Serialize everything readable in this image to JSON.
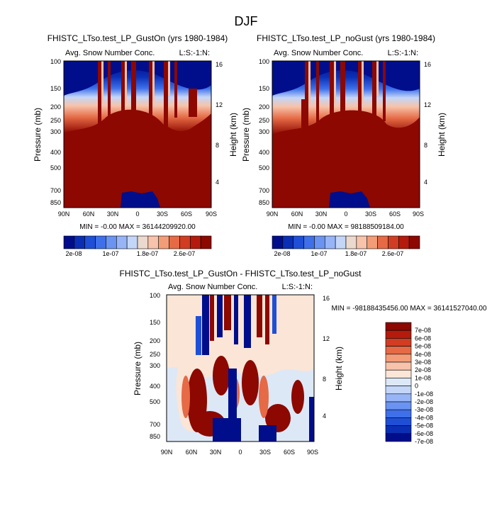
{
  "page_title": "DJF",
  "colors": {
    "full_scale": [
      "#000e8c",
      "#0a2fb5",
      "#1f4fd6",
      "#3f70ea",
      "#6a93f2",
      "#97b5f6",
      "#c4d6f8",
      "#ecd9ce",
      "#f7c3aa",
      "#f39c78",
      "#e56a45",
      "#d13d22",
      "#b51b0d",
      "#8c0800"
    ],
    "diff_scale": [
      "#000e8c",
      "#0a2fb5",
      "#1f4fd6",
      "#3f70ea",
      "#6a93f2",
      "#97b5f6",
      "#c4d6f8",
      "#dde8f6",
      "#fbe5d6",
      "#f7c3aa",
      "#f39c78",
      "#e56a45",
      "#d13d22",
      "#b51b0d",
      "#8c0800"
    ]
  },
  "chart_data": [
    {
      "type": "heatmap",
      "title": "FHISTC_LTso.test_LP_GustOn (yrs 1980-1984)",
      "subtitle_left": "Avg. Snow Number Conc.",
      "subtitle_right": "L:S:-1:N:",
      "ylabel": "Pressure (mb)",
      "ylabel_right": "Height (km)",
      "x_ticks": [
        "90N",
        "60N",
        "30N",
        "0",
        "30S",
        "60S",
        "90S"
      ],
      "y_ticks": [
        "100",
        "150",
        "200",
        "250",
        "300",
        "400",
        "500",
        "700",
        "850"
      ],
      "y_ticks_right": [
        "16",
        "12",
        "8",
        "4"
      ],
      "stats": "MIN = -0.00  MAX = 36144209920.00",
      "colorbar_labels": [
        "2e-08",
        "1e-07",
        "1.8e-07",
        "2.6e-07"
      ]
    },
    {
      "type": "heatmap",
      "title": "FHISTC_LTso.test_LP_noGust (yrs 1980-1984)",
      "subtitle_left": "Avg. Snow Number Conc.",
      "subtitle_right": "L:S:-1:N:",
      "ylabel": "Pressure (mb)",
      "ylabel_right": "Height (km)",
      "x_ticks": [
        "90N",
        "60N",
        "30N",
        "0",
        "30S",
        "60S",
        "90S"
      ],
      "y_ticks": [
        "100",
        "150",
        "200",
        "250",
        "300",
        "400",
        "500",
        "700",
        "850"
      ],
      "y_ticks_right": [
        "16",
        "12",
        "8",
        "4"
      ],
      "stats": "MIN = -0.00  MAX = 98188509184.00",
      "colorbar_labels": [
        "2e-08",
        "1e-07",
        "1.8e-07",
        "2.6e-07"
      ]
    },
    {
      "type": "heatmap",
      "title": "FHISTC_LTso.test_LP_GustOn - FHISTC_LTso.test_LP_noGust",
      "subtitle_left": "Avg. Snow Number Conc.",
      "subtitle_right": "L:S:-1:N:",
      "ylabel": "Pressure (mb)",
      "ylabel_right": "Height (km)",
      "x_ticks": [
        "90N",
        "60N",
        "30N",
        "0",
        "30S",
        "60S",
        "90S"
      ],
      "y_ticks": [
        "100",
        "150",
        "200",
        "250",
        "300",
        "400",
        "500",
        "700",
        "850"
      ],
      "y_ticks_right": [
        "16",
        "12",
        "8",
        "4"
      ],
      "stats": "MIN = -98188435456.00  MAX = 36141527040.00",
      "colorbar_labels": [
        "7e-08",
        "6e-08",
        "5e-08",
        "4e-08",
        "3e-08",
        "2e-08",
        "1e-08",
        "0",
        "-1e-08",
        "-2e-08",
        "-3e-08",
        "-4e-08",
        "-5e-08",
        "-6e-08",
        "-7e-08"
      ]
    }
  ]
}
